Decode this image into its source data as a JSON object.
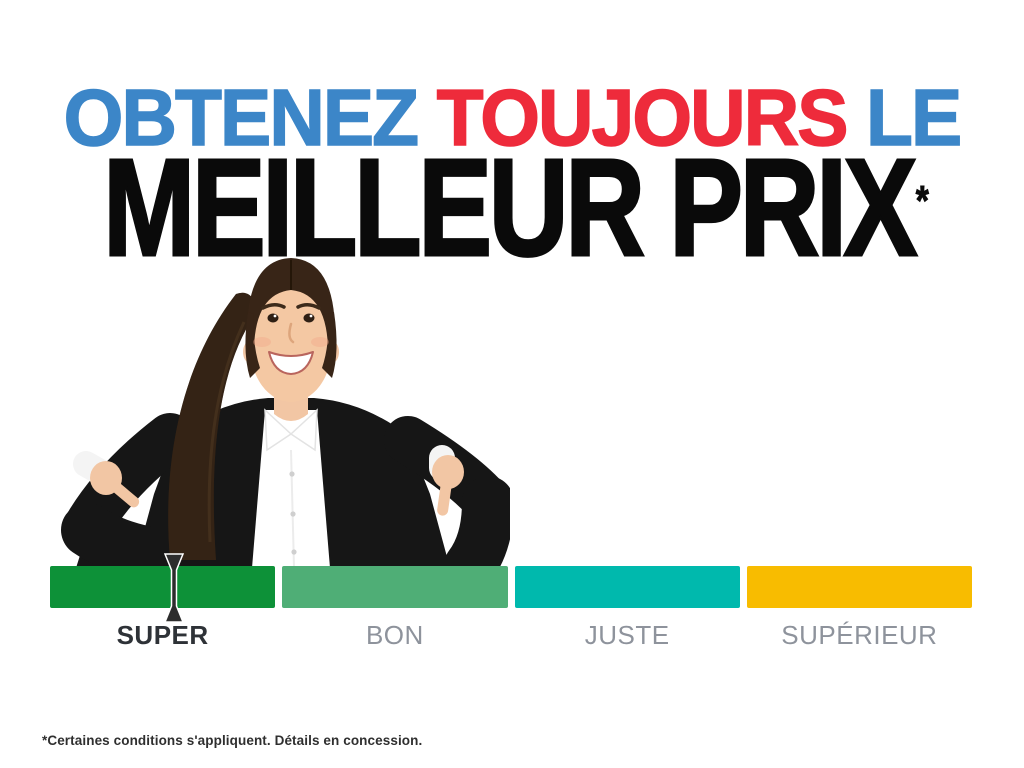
{
  "page": {
    "background": "#ffffff"
  },
  "headline": {
    "line1": [
      {
        "text": "OBTENEZ",
        "color": "#3c86c8"
      },
      {
        "text": "TOUJOURS",
        "color": "#ee2b3b"
      },
      {
        "text": "LE",
        "color": "#3c86c8"
      }
    ],
    "line2": {
      "text": "MEILLEUR PRIX",
      "asterisk": "*",
      "color": "#0a0a0a"
    }
  },
  "illustration": {
    "name": "woman-pointing-down",
    "description": "Smiling businesswoman in black suit pointing both index fingers down at the price scale"
  },
  "price_scale": {
    "marker": {
      "segment_index": 0,
      "position_fraction": 0.55,
      "color": "#2d2d2d"
    },
    "segments": [
      {
        "label": "SUPER",
        "color": "#0d9138",
        "label_color": "#2e3237",
        "label_bold": true
      },
      {
        "label": "BON",
        "color": "#4fae76",
        "label_color": "#8e939c",
        "label_bold": false
      },
      {
        "label": "JUSTE",
        "color": "#00b9ad",
        "label_color": "#8e939c",
        "label_bold": false
      },
      {
        "label": "SUPÉRIEUR",
        "color": "#f8bc00",
        "label_color": "#8e939c",
        "label_bold": false
      }
    ]
  },
  "footer": {
    "disclaimer": "*Certaines conditions s'appliquent. Détails en concession."
  }
}
